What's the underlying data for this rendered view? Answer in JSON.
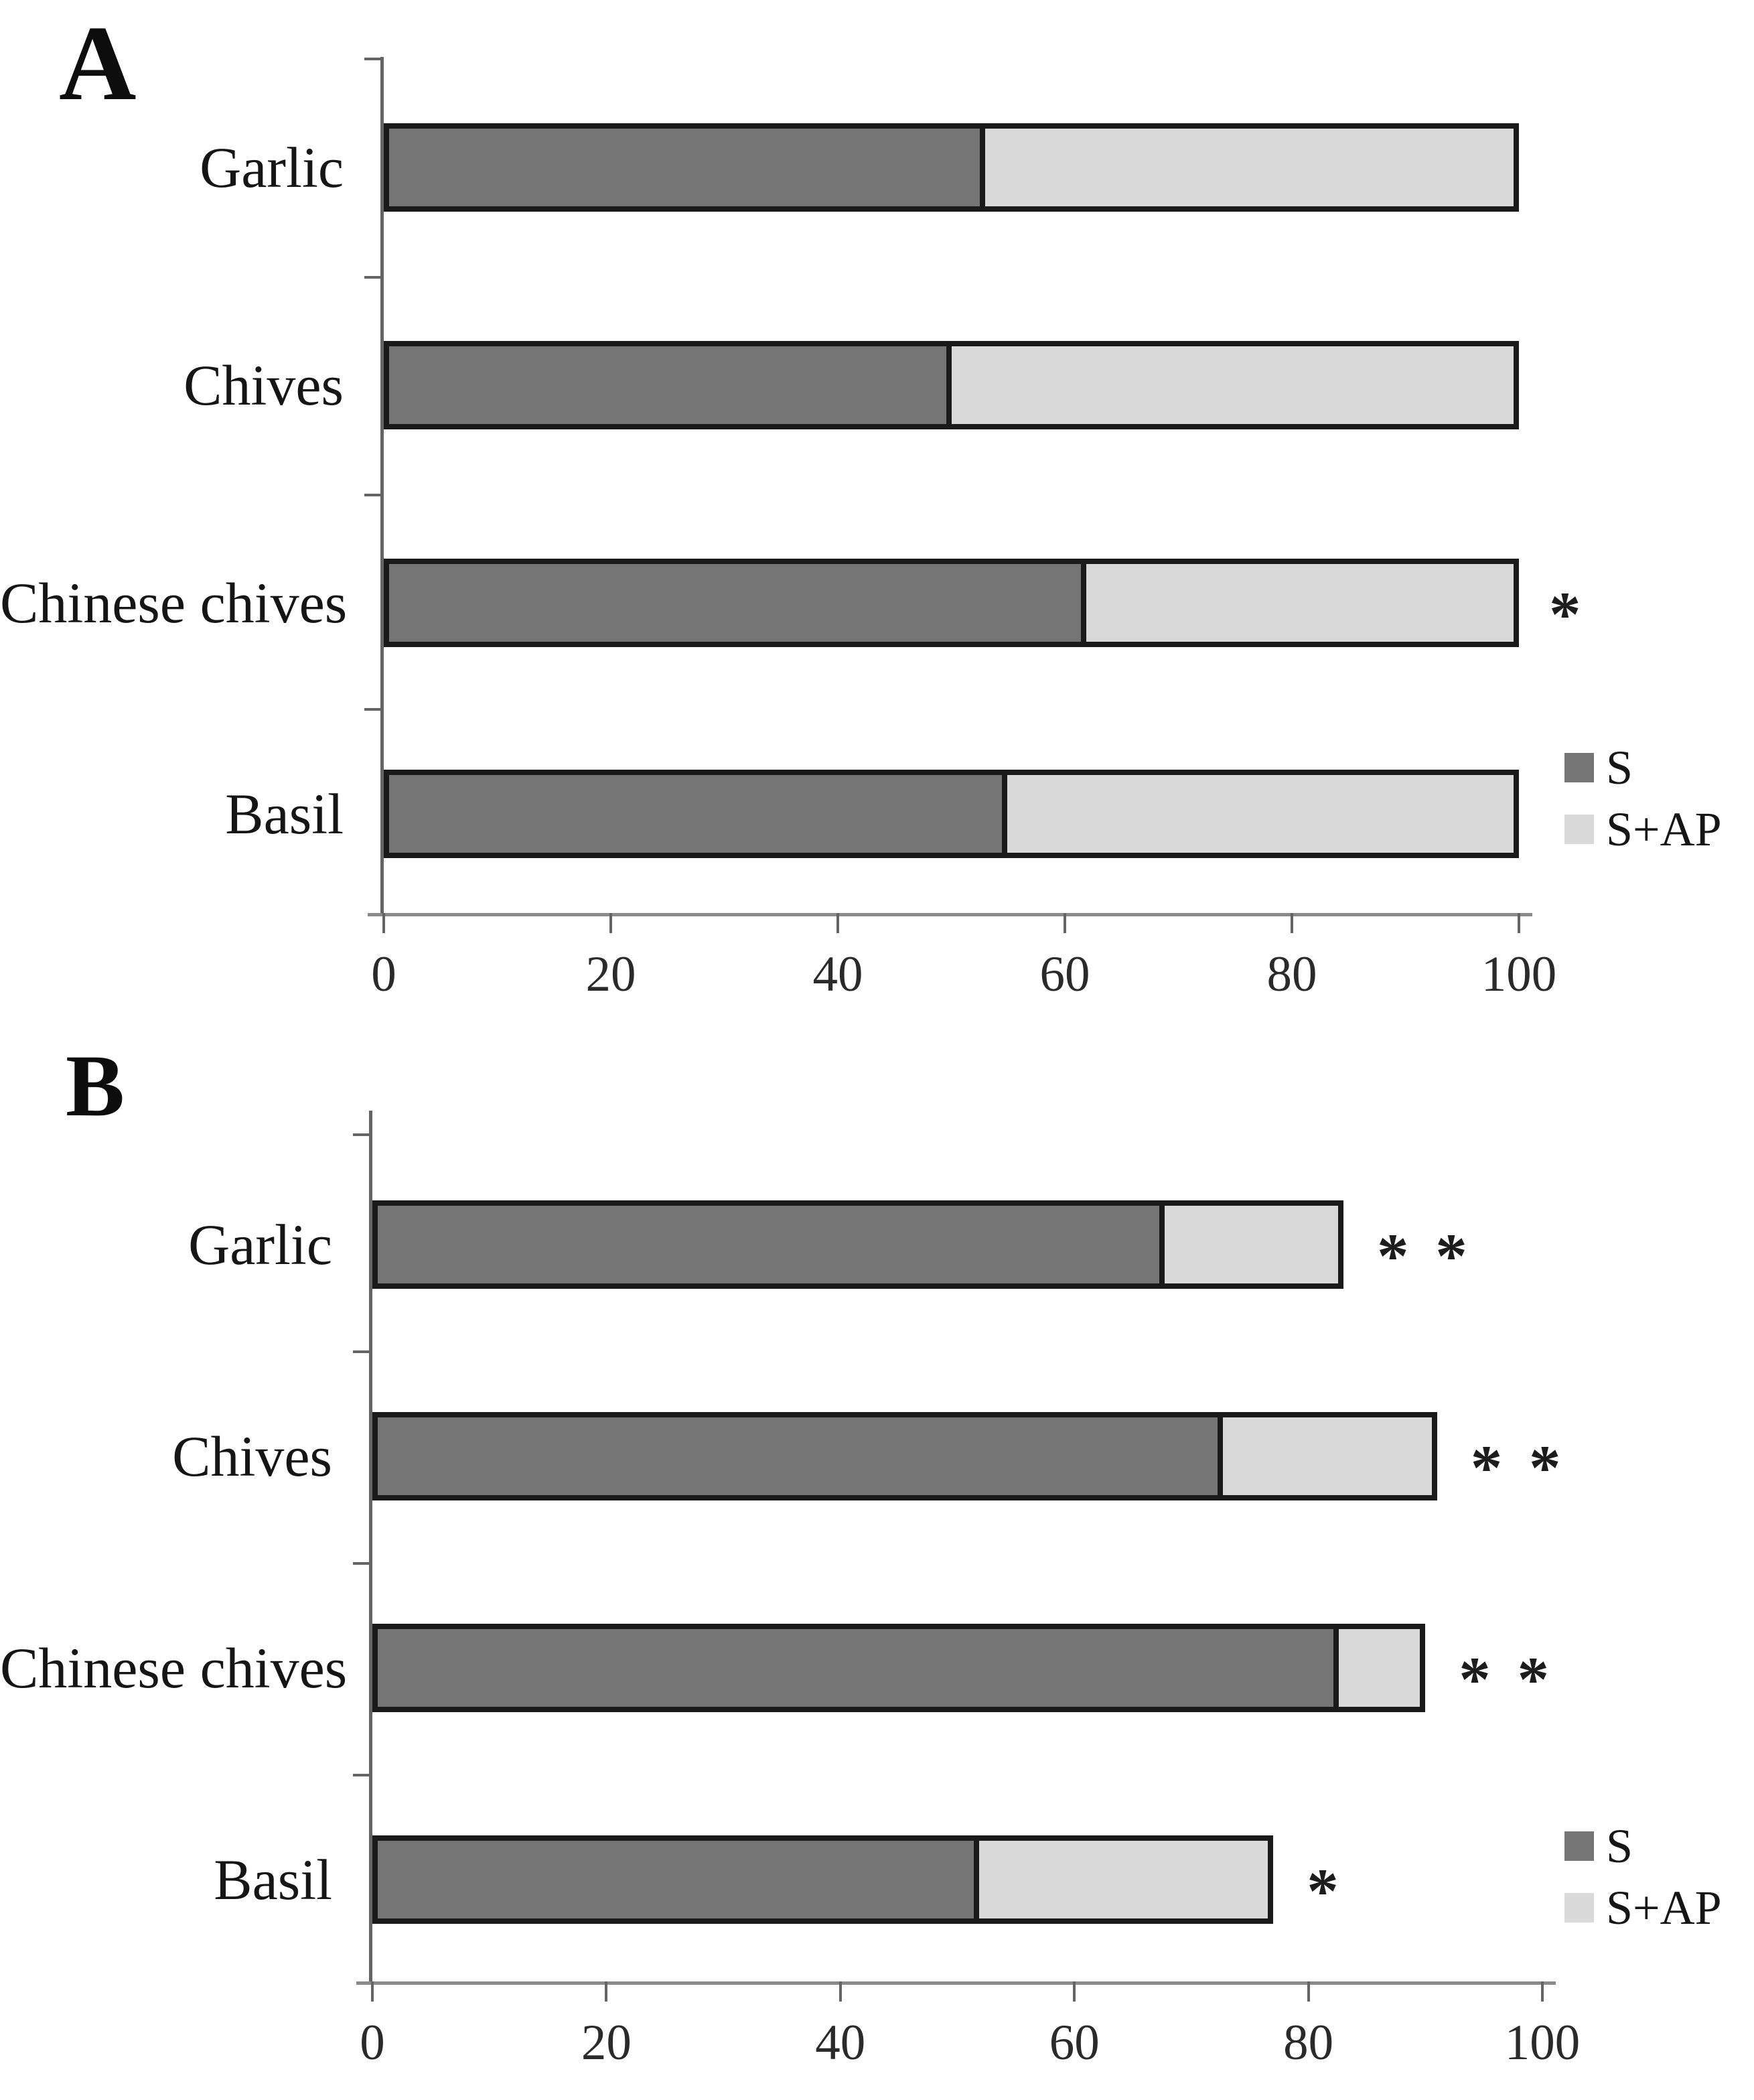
{
  "chart_data": [
    {
      "panel": "A",
      "type": "bar",
      "orientation": "horizontal",
      "stacked": true,
      "categories": [
        "Garlic",
        "Chives",
        "Chinese chives",
        "Basil"
      ],
      "series": [
        {
          "name": "S",
          "color": "#757575",
          "values": [
            53,
            50,
            62,
            55
          ]
        },
        {
          "name": "S+AP",
          "color": "#d9d9d9",
          "values": [
            47,
            50,
            38,
            45
          ]
        }
      ],
      "totals": [
        100,
        100,
        100,
        100
      ],
      "annotations": [
        "",
        "",
        "*",
        ""
      ],
      "xlabel": "",
      "ylabel": "",
      "xlim": [
        0,
        100
      ],
      "x_ticks": [
        "0",
        "20",
        "40",
        "60",
        "80",
        "100"
      ],
      "grid": false,
      "legend_position": "right-lower"
    },
    {
      "panel": "B",
      "type": "bar",
      "orientation": "horizontal",
      "stacked": true,
      "categories": [
        "Garlic",
        "Chives",
        "Chinese chives",
        "Basil"
      ],
      "series": [
        {
          "name": "S",
          "color": "#757575",
          "values": [
            68,
            73,
            83,
            52
          ]
        },
        {
          "name": "S+AP",
          "color": "#d9d9d9",
          "values": [
            15,
            18,
            7,
            25
          ]
        }
      ],
      "totals": [
        83,
        91,
        90,
        77
      ],
      "annotations": [
        "* *",
        "* *",
        "* *",
        "*"
      ],
      "xlabel": "",
      "ylabel": "",
      "xlim": [
        0,
        100
      ],
      "x_ticks": [
        "0",
        "20",
        "40",
        "60",
        "80",
        "100"
      ],
      "grid": false,
      "legend_position": "right-lower"
    }
  ],
  "colors": {
    "bar_border": "#1a1a1a",
    "axis": "#646464",
    "dark_segment": "#757575",
    "light_segment": "#d9d9d9"
  }
}
